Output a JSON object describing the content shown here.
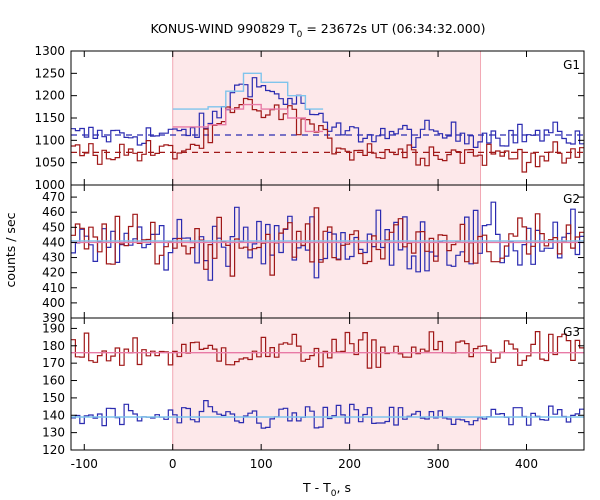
{
  "chart_data": {
    "type": "line",
    "title_prefix": "KONUS-WIND 990829 T",
    "title_subscript": "0",
    "title_suffix": " = 23672s UT (06:34:32.000)",
    "xlabel_prefix": "T - T",
    "xlabel_subscript": "0",
    "xlabel_suffix": ", s",
    "ylabel": "counts / sec",
    "xlim": [
      -115,
      465
    ],
    "x_ticks": [
      -100,
      0,
      100,
      200,
      300,
      400
    ],
    "shaded_interval": [
      0,
      348
    ],
    "bin_width": 5,
    "colors": {
      "blue": "#2b2bb0",
      "red": "#a01818",
      "light_blue": "#7fc4ec",
      "pink": "#e87aa6",
      "shade": "#fde8ea",
      "dashed_blue": "#2b2bb0",
      "dashed_red": "#a01818"
    },
    "panels": [
      {
        "name": "G1",
        "ylim": [
          1000,
          1300
        ],
        "y_ticks": [
          1000,
          1050,
          1100,
          1150,
          1200,
          1250,
          1300
        ],
        "background_levels": [
          {
            "color": "blue",
            "value": 1112
          },
          {
            "color": "red",
            "value": 1073
          }
        ],
        "series": [
          {
            "color": "blue",
            "profile": [
              [
                -115,
                1112
              ],
              [
                0,
                1112
              ],
              [
                40,
                1135
              ],
              [
                60,
                1185
              ],
              [
                80,
                1240
              ],
              [
                100,
                1215
              ],
              [
                130,
                1190
              ],
              [
                150,
                1175
              ],
              [
                170,
                1125
              ],
              [
                200,
                1115
              ],
              [
                465,
                1110
              ]
            ],
            "noise": 14
          },
          {
            "color": "red",
            "profile": [
              [
                -115,
                1073
              ],
              [
                0,
                1073
              ],
              [
                40,
                1100
              ],
              [
                60,
                1150
              ],
              [
                80,
                1180
              ],
              [
                100,
                1165
              ],
              [
                130,
                1155
              ],
              [
                150,
                1140
              ],
              [
                170,
                1100
              ],
              [
                200,
                1080
              ],
              [
                300,
                1072
              ],
              [
                465,
                1060
              ]
            ],
            "noise": 14
          },
          {
            "color": "light_blue",
            "step": true,
            "profile": [
              [
                0,
                1170
              ],
              [
                40,
                1175
              ],
              [
                60,
                1210
              ],
              [
                80,
                1250
              ],
              [
                100,
                1230
              ],
              [
                130,
                1200
              ],
              [
                150,
                1170
              ],
              [
                170,
                1125
              ]
            ]
          },
          {
            "color": "pink",
            "step": true,
            "profile": [
              [
                0,
                1130
              ],
              [
                40,
                1135
              ],
              [
                60,
                1170
              ],
              [
                80,
                1180
              ],
              [
                100,
                1170
              ],
              [
                130,
                1150
              ],
              [
                150,
                1120
              ],
              [
                170,
                1100
              ]
            ]
          }
        ]
      },
      {
        "name": "G2",
        "ylim": [
          390,
          478
        ],
        "y_ticks": [
          390,
          400,
          410,
          420,
          430,
          440,
          450,
          460,
          470
        ],
        "fit_levels": [
          {
            "color": "light_blue",
            "value": 441
          },
          {
            "color": "pink",
            "value": 440
          }
        ],
        "series": [
          {
            "color": "blue",
            "profile": [
              [
                -115,
                440
              ],
              [
                465,
                440
              ]
            ],
            "noise": 11
          },
          {
            "color": "red",
            "profile": [
              [
                -115,
                440
              ],
              [
                465,
                440
              ]
            ],
            "noise": 9
          }
        ]
      },
      {
        "name": "G3",
        "ylim": [
          120,
          196
        ],
        "y_ticks": [
          120,
          130,
          140,
          150,
          160,
          170,
          180,
          190
        ],
        "fit_levels": [
          {
            "color": "pink",
            "value": 176
          },
          {
            "color": "light_blue",
            "value": 139
          }
        ],
        "series": [
          {
            "color": "red",
            "profile": [
              [
                -115,
                176
              ],
              [
                465,
                178
              ]
            ],
            "noise": 5
          },
          {
            "color": "blue",
            "profile": [
              [
                -115,
                139
              ],
              [
                465,
                138
              ]
            ],
            "noise": 4
          }
        ]
      }
    ]
  }
}
